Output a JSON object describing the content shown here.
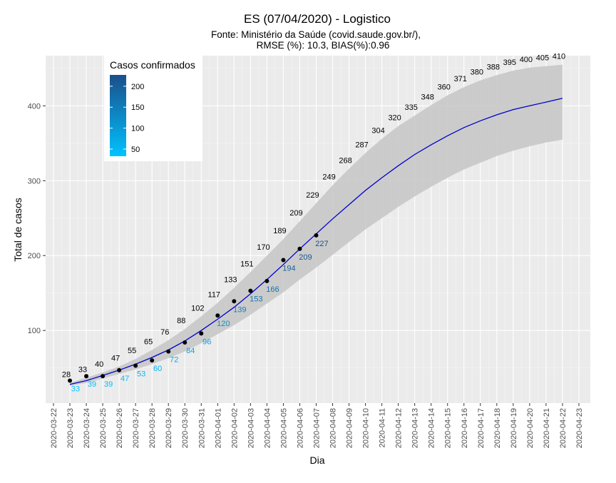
{
  "chart_data": {
    "type": "line",
    "title": "ES (07/04/2020) - Logistico",
    "subtitle_line1": "Fonte: Ministério da Saúde (covid.saude.gov.br/),",
    "subtitle_line2": "RMSE (%): 10.3, BIAS(%):0.96",
    "xlabel": "Dia",
    "ylabel": "Total de casos",
    "x_ticks": [
      "2020-03-22",
      "2020-03-23",
      "2020-03-24",
      "2020-03-25",
      "2020-03-26",
      "2020-03-27",
      "2020-03-28",
      "2020-03-29",
      "2020-03-30",
      "2020-03-31",
      "2020-04-01",
      "2020-04-02",
      "2020-04-03",
      "2020-04-04",
      "2020-04-05",
      "2020-04-06",
      "2020-04-07",
      "2020-04-08",
      "2020-04-09",
      "2020-04-10",
      "2020-04-11",
      "2020-04-12",
      "2020-04-13",
      "2020-04-14",
      "2020-04-15",
      "2020-04-16",
      "2020-04-17",
      "2020-04-18",
      "2020-04-19",
      "2020-04-20",
      "2020-04-21",
      "2020-04-22",
      "2020-04-23"
    ],
    "y_ticks": [
      100,
      200,
      300,
      400
    ],
    "ylim": [
      3,
      467
    ],
    "grid": true,
    "legend": {
      "title": "Casos confirmados",
      "ticks": [
        50,
        100,
        150,
        200
      ],
      "placement": "top-left",
      "color_low": "#00c2ff",
      "color_high": "#1a4f8a"
    },
    "observed": {
      "dates": [
        "2020-03-23",
        "2020-03-24",
        "2020-03-25",
        "2020-03-26",
        "2020-03-27",
        "2020-03-28",
        "2020-03-29",
        "2020-03-30",
        "2020-03-31",
        "2020-04-01",
        "2020-04-02",
        "2020-04-03",
        "2020-04-04",
        "2020-04-05",
        "2020-04-06",
        "2020-04-07"
      ],
      "values": [
        33,
        39,
        39,
        47,
        53,
        60,
        72,
        84,
        96,
        120,
        139,
        153,
        166,
        194,
        209,
        227
      ]
    },
    "fitted": {
      "dates": [
        "2020-03-23",
        "2020-03-24",
        "2020-03-25",
        "2020-03-26",
        "2020-03-27",
        "2020-03-28",
        "2020-03-29",
        "2020-03-30",
        "2020-03-31",
        "2020-04-01",
        "2020-04-02",
        "2020-04-03",
        "2020-04-04",
        "2020-04-05",
        "2020-04-06",
        "2020-04-07",
        "2020-04-08",
        "2020-04-09",
        "2020-04-10",
        "2020-04-11",
        "2020-04-12",
        "2020-04-13",
        "2020-04-14",
        "2020-04-15",
        "2020-04-16",
        "2020-04-17",
        "2020-04-18",
        "2020-04-19",
        "2020-04-20",
        "2020-04-21",
        "2020-04-22"
      ],
      "values": [
        28,
        33,
        40,
        47,
        55,
        65,
        76,
        88,
        102,
        117,
        133,
        151,
        170,
        189,
        209,
        229,
        249,
        268,
        287,
        304,
        320,
        335,
        348,
        360,
        371,
        380,
        388,
        395,
        400,
        405,
        410
      ],
      "line_values": [
        28,
        33,
        40,
        47,
        55,
        64,
        74,
        86,
        100,
        115,
        131,
        149,
        168,
        188,
        209,
        229,
        249,
        268,
        287,
        304,
        320,
        335,
        348,
        360,
        371,
        380,
        388,
        395,
        400,
        405,
        410
      ],
      "lower": [
        26,
        30,
        36,
        42,
        48,
        55,
        63,
        72,
        83,
        95,
        107,
        121,
        136,
        151,
        168,
        184,
        201,
        218,
        235,
        250,
        265,
        279,
        292,
        304,
        315,
        324,
        333,
        340,
        346,
        351,
        355
      ],
      "upper": [
        30,
        37,
        44,
        52,
        62,
        74,
        87,
        102,
        119,
        137,
        157,
        178,
        200,
        222,
        246,
        270,
        294,
        316,
        337,
        356,
        373,
        387,
        401,
        414,
        425,
        434,
        441,
        447,
        451,
        453,
        455
      ],
      "line_color": "#0000cc",
      "band_color": "#c8c8c8"
    }
  }
}
